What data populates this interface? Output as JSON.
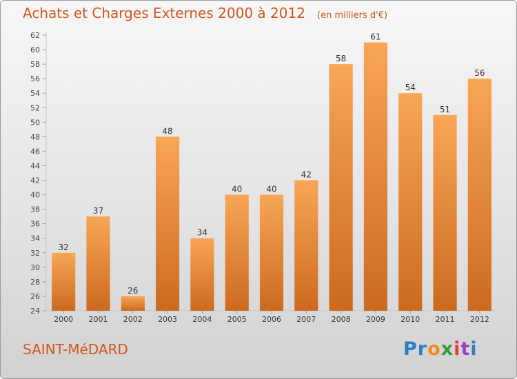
{
  "header": {
    "title": "Achats et Charges Externes 2000 à 2012",
    "subtitle": "(en milliers d'€)"
  },
  "footer": {
    "commune": "SAINT-MéDARD",
    "logo_letters": [
      {
        "ch": "P",
        "color": "#2a7fc2"
      },
      {
        "ch": "r",
        "color": "#2a7fc2"
      },
      {
        "ch": "o",
        "color": "#f08a1c"
      },
      {
        "ch": "x",
        "color": "#3a9a3a"
      },
      {
        "ch": "i",
        "color": "#e23a3a"
      },
      {
        "ch": "t",
        "color": "#9a3fc4"
      },
      {
        "ch": "i",
        "color": "#2a7fc2"
      }
    ]
  },
  "chart_data": {
    "type": "bar",
    "categories": [
      "2000",
      "2001",
      "2002",
      "2003",
      "2004",
      "2005",
      "2006",
      "2007",
      "2008",
      "2009",
      "2010",
      "2011",
      "2012"
    ],
    "values": [
      32,
      37,
      26,
      48,
      34,
      40,
      40,
      42,
      58,
      61,
      54,
      51,
      56
    ],
    "ylim": [
      24,
      62
    ],
    "yticks": [
      24,
      26,
      28,
      30,
      32,
      34,
      36,
      38,
      40,
      42,
      44,
      46,
      48,
      50,
      52,
      54,
      56,
      58,
      60,
      62
    ],
    "grid": false,
    "bar_color_top": "#f8a655",
    "bar_color_bottom": "#cc6a1f",
    "axis_color": "#c8c8c8"
  }
}
